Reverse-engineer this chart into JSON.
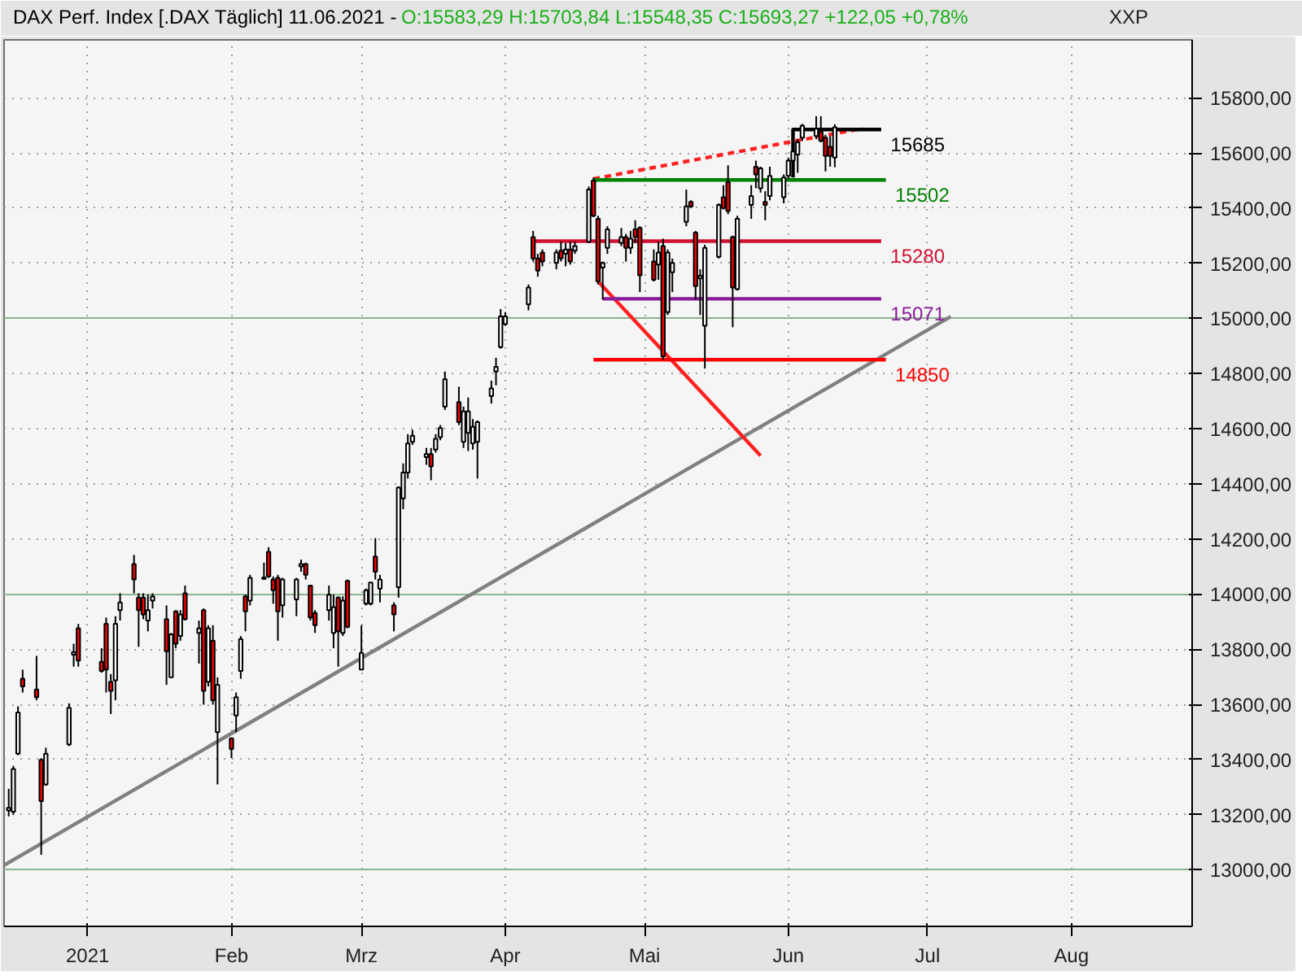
{
  "chart_data": {
    "type": "candlestick",
    "title": "DAX Perf. Index [.DAX  Täglich] 11.06.2021 -",
    "subtitle": "O:15583,29 H:15703,84 L:15548,35 C:15693,27 +122,05 +0,78%",
    "annotations": [
      "XXP"
    ],
    "x": [
      "2020-12-15",
      "2020-12-16",
      "2020-12-17",
      "2020-12-18",
      "2020-12-21",
      "2020-12-22",
      "2020-12-23",
      "2020-12-28",
      "2020-12-29",
      "2020-12-30",
      "2021-01-04",
      "2021-01-05",
      "2021-01-06",
      "2021-01-07",
      "2021-01-08",
      "2021-01-11",
      "2021-01-12",
      "2021-01-13",
      "2021-01-14",
      "2021-01-15",
      "2021-01-18",
      "2021-01-19",
      "2021-01-20",
      "2021-01-21",
      "2021-01-22",
      "2021-01-25",
      "2021-01-26",
      "2021-01-27",
      "2021-01-28",
      "2021-01-29",
      "2021-02-01",
      "2021-02-02",
      "2021-02-03",
      "2021-02-04",
      "2021-02-05",
      "2021-02-08",
      "2021-02-09",
      "2021-02-10",
      "2021-02-11",
      "2021-02-12",
      "2021-02-15",
      "2021-02-16",
      "2021-02-17",
      "2021-02-18",
      "2021-02-19",
      "2021-02-22",
      "2021-02-23",
      "2021-02-24",
      "2021-02-25",
      "2021-02-26",
      "2021-03-01",
      "2021-03-02",
      "2021-03-03",
      "2021-03-04",
      "2021-03-05",
      "2021-03-08",
      "2021-03-09",
      "2021-03-10",
      "2021-03-11",
      "2021-03-12",
      "2021-03-15",
      "2021-03-16",
      "2021-03-17",
      "2021-03-18",
      "2021-03-19",
      "2021-03-22",
      "2021-03-23",
      "2021-03-24",
      "2021-03-25",
      "2021-03-26",
      "2021-03-29",
      "2021-03-30",
      "2021-03-31",
      "2021-04-01",
      "2021-04-06",
      "2021-04-07",
      "2021-04-08",
      "2021-04-09",
      "2021-04-12",
      "2021-04-13",
      "2021-04-14",
      "2021-04-15",
      "2021-04-16",
      "2021-04-19",
      "2021-04-20",
      "2021-04-21",
      "2021-04-22",
      "2021-04-23",
      "2021-04-26",
      "2021-04-27",
      "2021-04-28",
      "2021-04-29",
      "2021-04-30",
      "2021-05-03",
      "2021-05-04",
      "2021-05-05",
      "2021-05-06",
      "2021-05-07",
      "2021-05-10",
      "2021-05-11",
      "2021-05-12",
      "2021-05-13",
      "2021-05-14",
      "2021-05-17",
      "2021-05-18",
      "2021-05-19",
      "2021-05-20",
      "2021-05-21",
      "2021-05-24",
      "2021-05-25",
      "2021-05-26",
      "2021-05-27",
      "2021-05-28",
      "2021-05-31",
      "2021-06-01",
      "2021-06-02",
      "2021-06-03",
      "2021-06-04",
      "2021-06-07",
      "2021-06-08",
      "2021-06-09",
      "2021-06-10",
      "2021-06-11"
    ],
    "ohlc": [
      [
        13215,
        13294,
        13194,
        13225
      ],
      [
        13211,
        13377,
        13200,
        13366
      ],
      [
        13421,
        13593,
        13416,
        13571
      ],
      [
        13693,
        13726,
        13643,
        13665
      ],
      [
        13654,
        13776,
        13615,
        13626
      ],
      [
        13399,
        13405,
        13055,
        13249
      ],
      [
        13310,
        13443,
        13305,
        13421
      ],
      [
        13455,
        13604,
        13449,
        13588
      ],
      [
        13780,
        13820,
        13737,
        13790
      ],
      [
        13876,
        13892,
        13737,
        13759
      ],
      [
        13754,
        13804,
        13715,
        13721
      ],
      [
        13892,
        13915,
        13643,
        13726
      ],
      [
        13682,
        13710,
        13565,
        13649
      ],
      [
        13687,
        13920,
        13615,
        13892
      ],
      [
        13942,
        14003,
        13904,
        13970
      ],
      [
        14109,
        14142,
        14003,
        14053
      ],
      [
        13987,
        14003,
        13809,
        13942
      ],
      [
        13987,
        14003,
        13909,
        13926
      ],
      [
        13904,
        13998,
        13865,
        13942
      ],
      [
        13976,
        14003,
        13948,
        13992
      ],
      [
        13909,
        13959,
        13671,
        13793
      ],
      [
        13698,
        13859,
        13698,
        13854
      ],
      [
        13937,
        13942,
        13804,
        13820
      ],
      [
        13848,
        13942,
        13831,
        13926
      ],
      [
        14003,
        14031,
        13904,
        13909
      ],
      [
        13859,
        13904,
        13748,
        13876
      ],
      [
        13942,
        13948,
        13599,
        13649
      ],
      [
        13682,
        13887,
        13665,
        13876
      ],
      [
        13831,
        13887,
        13599,
        13615
      ],
      [
        13499,
        13698,
        13310,
        13671
      ],
      [
        13477,
        13477,
        13405,
        13438
      ],
      [
        13560,
        13643,
        13499,
        13626
      ],
      [
        13721,
        13848,
        13693,
        13837
      ],
      [
        13992,
        13998,
        13865,
        13937
      ],
      [
        13976,
        14070,
        13959,
        14059
      ],
      [
        14055,
        14114,
        14053,
        14060
      ],
      [
        14153,
        14170,
        14059,
        14064
      ],
      [
        14053,
        14064,
        13965,
        14014
      ],
      [
        14059,
        14070,
        13831,
        13937
      ],
      [
        13959,
        14059,
        13915,
        14053
      ],
      [
        13981,
        14059,
        13920,
        14053
      ],
      [
        14100,
        14125,
        14081,
        14109
      ],
      [
        14109,
        14114,
        14053,
        14070
      ],
      [
        14031,
        14031,
        13904,
        13915
      ],
      [
        13931,
        13942,
        13859,
        13887
      ],
      [
        13942,
        14031,
        13904,
        13998
      ],
      [
        13859,
        13998,
        13804,
        13953
      ],
      [
        13987,
        13992,
        13737,
        13865
      ],
      [
        13859,
        13992,
        13848,
        13976
      ],
      [
        14048,
        14053,
        13876,
        13881
      ],
      [
        13726,
        13887,
        13726,
        13787
      ],
      [
        13965,
        14020,
        13959,
        14014
      ],
      [
        13965,
        14042,
        13959,
        14042
      ],
      [
        14136,
        14203,
        14053,
        14081
      ],
      [
        14020,
        14070,
        13970,
        14053
      ],
      [
        13959,
        13970,
        13865,
        13926
      ],
      [
        14025,
        14391,
        13987,
        14386
      ],
      [
        14347,
        14474,
        14308,
        14441
      ],
      [
        14441,
        14580,
        14419,
        14546
      ],
      [
        14552,
        14596,
        14541,
        14574
      ],
      [
        14497,
        14530,
        14469,
        14508
      ],
      [
        14508,
        14530,
        14413,
        14463
      ],
      [
        14524,
        14580,
        14513,
        14563
      ],
      [
        14569,
        14613,
        14558,
        14602
      ],
      [
        14680,
        14807,
        14668,
        14779
      ],
      [
        14696,
        14752,
        14613,
        14624
      ],
      [
        14552,
        14680,
        14530,
        14663
      ],
      [
        14585,
        14713,
        14519,
        14663
      ],
      [
        14546,
        14635,
        14524,
        14607
      ],
      [
        14552,
        14630,
        14419,
        14624
      ],
      [
        14718,
        14774,
        14691,
        14746
      ],
      [
        14807,
        14857,
        14757,
        14824
      ],
      [
        14896,
        15034,
        14890,
        15007
      ],
      [
        14979,
        15023,
        14973,
        15007
      ],
      [
        15051,
        15123,
        15029,
        15112
      ],
      [
        15295,
        15317,
        15206,
        15217
      ],
      [
        15217,
        15234,
        15151,
        15173
      ],
      [
        15239,
        15250,
        15189,
        15206
      ],
      [
        15201,
        15250,
        15178,
        15239
      ],
      [
        15245,
        15278,
        15206,
        15217
      ],
      [
        15234,
        15273,
        15189,
        15250
      ],
      [
        15250,
        15278,
        15195,
        15206
      ],
      [
        15245,
        15278,
        15234,
        15262
      ],
      [
        15278,
        15478,
        15273,
        15467
      ],
      [
        15500,
        15511,
        15367,
        15372
      ],
      [
        15361,
        15372,
        15123,
        15134
      ],
      [
        15184,
        15206,
        15068,
        15201
      ],
      [
        15256,
        15334,
        15234,
        15323
      ],
      [
        15273,
        15328,
        15262,
        15295
      ],
      [
        15295,
        15306,
        15206,
        15256
      ],
      [
        15256,
        15317,
        15234,
        15289
      ],
      [
        15323,
        15356,
        15273,
        15295
      ],
      [
        15328,
        15334,
        15095,
        15156
      ],
      [
        15206,
        15250,
        15134,
        15140
      ],
      [
        15195,
        15278,
        15140,
        15239
      ],
      [
        15262,
        15289,
        14850,
        14862
      ],
      [
        15023,
        15250,
        15012,
        15239
      ],
      [
        15167,
        15217,
        15095,
        15201
      ],
      [
        15350,
        15467,
        15334,
        15406
      ],
      [
        15422,
        15428,
        15400,
        15406
      ],
      [
        15311,
        15317,
        15068,
        15117
      ],
      [
        15145,
        15178,
        15012,
        15155
      ],
      [
        14973,
        15267,
        14818,
        15256
      ],
      [
        15223,
        15417,
        15217,
        15411
      ],
      [
        15439,
        15483,
        15395,
        15400
      ],
      [
        15494,
        15555,
        15378,
        15389
      ],
      [
        15295,
        15300,
        14968,
        15112
      ],
      [
        15106,
        15372,
        15101,
        15361
      ],
      [
        15411,
        15483,
        15361,
        15444
      ],
      [
        15550,
        15572,
        15472,
        15522
      ],
      [
        15472,
        15550,
        15456,
        15544
      ],
      [
        15422,
        15461,
        15356,
        15411
      ],
      [
        15444,
        15550,
        15428,
        15517
      ],
      [
        15439,
        15522,
        15417,
        15511
      ],
      [
        15517,
        15583,
        15505,
        15572
      ],
      [
        15572,
        15611,
        15566,
        15605
      ],
      [
        15594,
        15650,
        15528,
        15638
      ],
      [
        15655,
        15705,
        15644,
        15699
      ],
      [
        15661,
        15733,
        15650,
        15688
      ],
      [
        15677,
        15733,
        15638,
        15644
      ],
      [
        15655,
        15666,
        15533,
        15589
      ],
      [
        15622,
        15661,
        15550,
        15589
      ],
      [
        15583.29,
        15703.84,
        15548.35,
        15693.27
      ]
    ],
    "series": [
      {
        "type": "line",
        "color": "#808080",
        "x": [
          "2020-12-14",
          "2021-07-06"
        ],
        "values": [
          13017,
          15007
        ]
      },
      {
        "type": "line",
        "color": "#ff2020",
        "x": [
          "2021-04-21",
          "2021-05-26"
        ],
        "values": [
          15134,
          14502
        ]
      },
      {
        "type": "line",
        "color": "#ff2020",
        "line_style": "dashed",
        "x": [
          "2021-04-20",
          "2021-06-17"
        ],
        "values": [
          15506,
          15689
        ]
      },
      {
        "type": "line",
        "name": "15685",
        "color": "#000000",
        "x": [
          "2021-06-02",
          "2021-06-02",
          "2021-06-21"
        ],
        "values": [
          15511,
          15685,
          15685
        ]
      },
      {
        "type": "line",
        "name": "15502",
        "color": "#008000",
        "x": [
          "2021-04-20",
          "2021-06-22"
        ],
        "values": [
          15502,
          15502
        ]
      },
      {
        "type": "line",
        "name": "15280",
        "color": "#d01030",
        "x": [
          "2021-04-07",
          "2021-06-21"
        ],
        "values": [
          15280,
          15280
        ]
      },
      {
        "type": "line",
        "name": "15071",
        "color": "#8b1a9b",
        "x": [
          "2021-04-22",
          "2021-06-21"
        ],
        "values": [
          15071,
          15071
        ]
      },
      {
        "type": "line",
        "name": "14850",
        "color": "#ff0000",
        "x": [
          "2021-04-20",
          "2021-06-22"
        ],
        "values": [
          14850,
          14850
        ]
      }
    ],
    "xlim": [
      "2020-12-14",
      "2021-08-27"
    ],
    "xticks": [
      {
        "value": "2021-01-01",
        "label": "2021"
      },
      {
        "value": "2021-02-01",
        "label": "Feb"
      },
      {
        "value": "2021-03-01",
        "label": "Mrz"
      },
      {
        "value": "2021-04-01",
        "label": "Apr"
      },
      {
        "value": "2021-05-01",
        "label": "Mai"
      },
      {
        "value": "2021-06-01",
        "label": "Jun"
      },
      {
        "value": "2021-07-01",
        "label": "Jul"
      },
      {
        "value": "2021-08-01",
        "label": "Aug"
      }
    ],
    "ylim": [
      12795,
      16010
    ],
    "yticks": [
      {
        "value": 13000,
        "label": "13000,00"
      },
      {
        "value": 13200,
        "label": "13200,00"
      },
      {
        "value": 13400,
        "label": "13400,00"
      },
      {
        "value": 13600,
        "label": "13600,00"
      },
      {
        "value": 13800,
        "label": "13800,00"
      },
      {
        "value": 14000,
        "label": "14000,00"
      },
      {
        "value": 14200,
        "label": "14200,00"
      },
      {
        "value": 14400,
        "label": "14400,00"
      },
      {
        "value": 14600,
        "label": "14600,00"
      },
      {
        "value": 14800,
        "label": "14800,00"
      },
      {
        "value": 15000,
        "label": "15000,00"
      },
      {
        "value": 15200,
        "label": "15200,00"
      },
      {
        "value": 15400,
        "label": "15400,00"
      },
      {
        "value": 15600,
        "label": "15600,00"
      },
      {
        "value": 15800,
        "label": "15800,00"
      }
    ],
    "grid": true
  }
}
